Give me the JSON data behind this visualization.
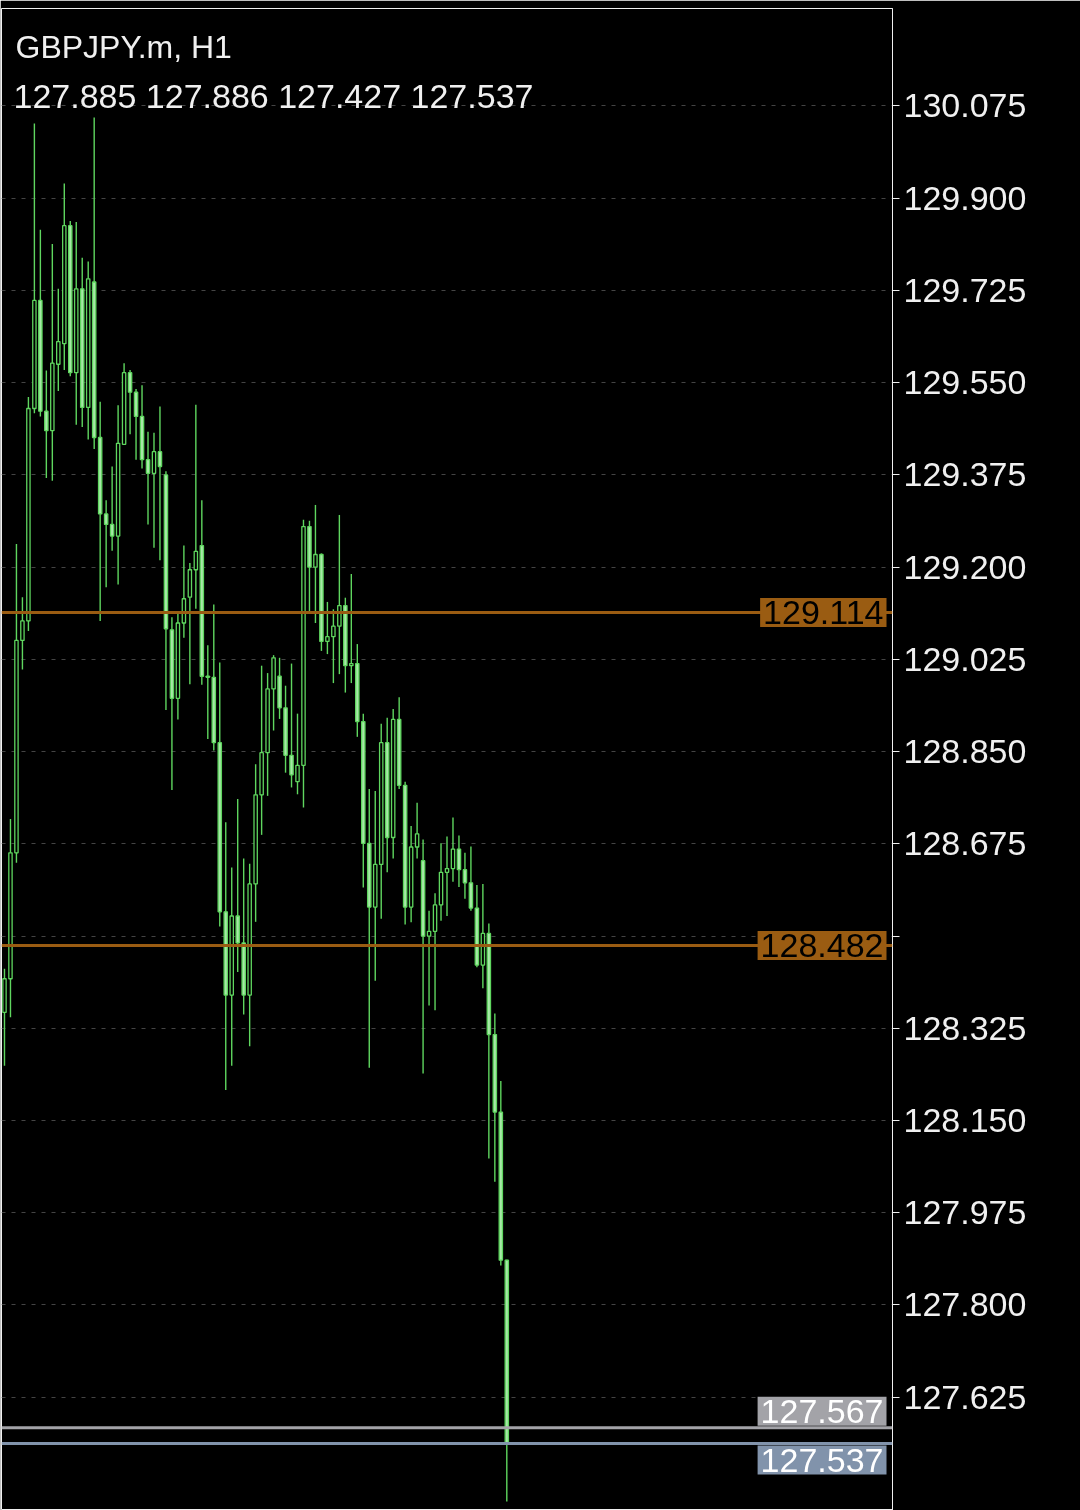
{
  "chart_data": {
    "type": "candlestick",
    "title": "GBPJPY.m, H1",
    "subtitle": "127.885 127.886 127.427 127.537",
    "categories": [
      null,
      null,
      null,
      null,
      null,
      null,
      null,
      null,
      null,
      null,
      null,
      null,
      null,
      null,
      null,
      null,
      null,
      null,
      null,
      null,
      null,
      null,
      null,
      null,
      null,
      null,
      null,
      null,
      null,
      null,
      null,
      null,
      null,
      null,
      null,
      null,
      null,
      null,
      null,
      null,
      null,
      null,
      null,
      null,
      null,
      null,
      null,
      null,
      null,
      null,
      null,
      null,
      null,
      null,
      null,
      null,
      null,
      null,
      null,
      null,
      null,
      null,
      null,
      null,
      null,
      null,
      null,
      null,
      null,
      null,
      null,
      null,
      null,
      null,
      null,
      null,
      null,
      null,
      null,
      null,
      null,
      null,
      null,
      null,
      null,
      null,
      null,
      null,
      null,
      null,
      null,
      null,
      null,
      null,
      null,
      null,
      null,
      null,
      null,
      null,
      null,
      null,
      null,
      null,
      null,
      null,
      null,
      null,
      null,
      null,
      null,
      null,
      null,
      null,
      null,
      null,
      null,
      null,
      null,
      null,
      null,
      null,
      null,
      null,
      null,
      null,
      null,
      null,
      null,
      null,
      null,
      null,
      null,
      null,
      null,
      null,
      null,
      null,
      null,
      null,
      null,
      null,
      null,
      null,
      null,
      null,
      null,
      null,
      null
    ],
    "color": "#5fd65f",
    "ohlc": [
      [
        128.355,
        128.438,
        128.254,
        128.419
      ],
      [
        128.419,
        128.722,
        128.346,
        128.658
      ],
      [
        128.658,
        129.244,
        128.639,
        129.061
      ],
      [
        129.061,
        129.143,
        129.006,
        129.098
      ],
      [
        129.098,
        129.523,
        129.079,
        129.501
      ],
      [
        129.501,
        130.042,
        129.492,
        129.706
      ],
      [
        129.706,
        129.84,
        129.486,
        129.496
      ],
      [
        129.496,
        129.573,
        129.369,
        129.459
      ],
      [
        129.459,
        129.813,
        129.364,
        129.587
      ],
      [
        129.585,
        129.728,
        129.534,
        129.628
      ],
      [
        129.624,
        129.928,
        129.574,
        129.848
      ],
      [
        129.848,
        129.857,
        129.562,
        129.569
      ],
      [
        129.569,
        129.855,
        129.47,
        129.728
      ],
      [
        129.728,
        129.787,
        129.466,
        129.503
      ],
      [
        129.503,
        129.78,
        129.442,
        129.747
      ],
      [
        129.741,
        130.053,
        129.424,
        129.446
      ],
      [
        129.446,
        129.514,
        129.098,
        129.301
      ],
      [
        129.301,
        129.327,
        129.162,
        129.281
      ],
      [
        129.281,
        129.391,
        129.231,
        129.259
      ],
      [
        129.259,
        129.507,
        129.167,
        129.435
      ],
      [
        129.433,
        129.587,
        129.433,
        129.569
      ],
      [
        129.569,
        129.574,
        129.452,
        129.532
      ],
      [
        129.532,
        129.538,
        129.404,
        129.486
      ],
      [
        129.486,
        129.545,
        129.387,
        129.404
      ],
      [
        129.404,
        129.457,
        129.281,
        129.378
      ],
      [
        129.378,
        129.455,
        129.237,
        129.419
      ],
      [
        129.419,
        129.505,
        129.213,
        129.391
      ],
      [
        129.375,
        129.382,
        128.929,
        129.083
      ],
      [
        129.081,
        129.105,
        128.777,
        128.951
      ],
      [
        128.951,
        129.112,
        128.911,
        129.094
      ],
      [
        129.094,
        129.241,
        129.066,
        129.14
      ],
      [
        129.143,
        129.208,
        128.978,
        129.195
      ],
      [
        129.195,
        129.508,
        129.121,
        129.23
      ],
      [
        129.241,
        129.327,
        128.977,
        128.993
      ],
      [
        128.993,
        129.052,
        128.874,
        128.991
      ],
      [
        128.991,
        129.129,
        128.852,
        128.867
      ],
      [
        128.867,
        129.019,
        128.518,
        128.546
      ],
      [
        128.546,
        128.716,
        128.208,
        128.388
      ],
      [
        128.388,
        128.63,
        128.254,
        128.538
      ],
      [
        128.538,
        128.76,
        128.432,
        128.487
      ],
      [
        128.487,
        128.647,
        128.351,
        128.388
      ],
      [
        128.388,
        128.637,
        128.291,
        128.599
      ],
      [
        128.599,
        128.826,
        128.527,
        128.768
      ],
      [
        128.768,
        129.013,
        128.692,
        128.848
      ],
      [
        128.848,
        128.999,
        128.766,
        128.969
      ],
      [
        128.969,
        129.033,
        128.89,
        129.028
      ],
      [
        128.993,
        129.028,
        128.912,
        128.933
      ],
      [
        128.933,
        128.975,
        128.81,
        128.843
      ],
      [
        128.843,
        129.017,
        128.782,
        128.806
      ],
      [
        128.793,
        128.922,
        128.769,
        128.824
      ],
      [
        128.824,
        129.29,
        128.744,
        129.277
      ],
      [
        129.277,
        129.288,
        129.112,
        129.2
      ],
      [
        129.2,
        129.318,
        129.094,
        129.224
      ],
      [
        129.224,
        129.226,
        129.041,
        129.059
      ],
      [
        129.059,
        129.134,
        129.035,
        129.068
      ],
      [
        129.068,
        129.12,
        128.98,
        129.088
      ],
      [
        129.088,
        129.299,
        128.997,
        129.127
      ],
      [
        129.127,
        129.142,
        128.962,
        129.013
      ],
      [
        129.013,
        129.187,
        128.98,
        129.017
      ],
      [
        129.017,
        129.054,
        128.878,
        128.907
      ],
      [
        128.907,
        128.922,
        128.592,
        128.676
      ],
      [
        128.676,
        128.779,
        128.25,
        128.555
      ],
      [
        128.555,
        128.775,
        128.415,
        128.636
      ],
      [
        128.636,
        128.903,
        128.533,
        128.867
      ],
      [
        128.867,
        128.914,
        128.621,
        128.687
      ],
      [
        128.687,
        128.931,
        128.647,
        128.911
      ],
      [
        128.911,
        128.953,
        128.779,
        128.786
      ],
      [
        128.786,
        128.793,
        128.522,
        128.555
      ],
      [
        128.555,
        128.709,
        128.526,
        128.669
      ],
      [
        128.669,
        128.753,
        128.647,
        128.694
      ],
      [
        128.643,
        128.683,
        128.239,
        128.5
      ],
      [
        128.5,
        128.548,
        128.368,
        128.509
      ],
      [
        128.509,
        128.581,
        128.359,
        128.559
      ],
      [
        128.559,
        128.676,
        128.529,
        128.621
      ],
      [
        128.621,
        128.689,
        128.538,
        128.628
      ],
      [
        128.628,
        128.725,
        128.603,
        128.665
      ],
      [
        128.665,
        128.691,
        128.593,
        128.626
      ],
      [
        128.626,
        128.658,
        128.571,
        128.601
      ],
      [
        128.601,
        128.67,
        128.548,
        128.553
      ],
      [
        128.553,
        128.597,
        128.441,
        128.445
      ],
      [
        128.445,
        128.599,
        128.401,
        128.505
      ],
      [
        128.505,
        128.524,
        128.078,
        128.313
      ],
      [
        128.313,
        128.353,
        128.034,
        128.166
      ],
      [
        128.166,
        128.225,
        127.875,
        127.885
      ],
      [
        127.885,
        127.886,
        127.427,
        127.537
      ],
      null,
      null,
      null,
      null,
      null,
      null,
      null,
      null,
      null,
      null,
      null,
      null,
      null,
      null,
      null,
      null,
      null,
      null,
      null,
      null,
      null,
      null,
      null,
      null,
      null,
      null,
      null,
      null,
      null,
      null,
      null,
      null,
      null,
      null,
      null,
      null,
      null,
      null,
      null,
      null,
      null,
      null,
      null,
      null,
      null,
      null,
      null,
      null,
      null,
      null,
      null,
      null,
      null,
      null,
      null,
      null,
      null,
      null,
      null,
      null,
      null,
      null,
      null,
      null
    ],
    "ylim": [
      127.41,
      130.26
    ],
    "yticks": [
      130.075,
      {
        "value": 129.9,
        "label": "129.900"
      },
      129.725,
      {
        "value": 129.55,
        "label": "129.550"
      },
      129.375,
      {
        "value": 129.2,
        "label": "129.200"
      },
      129.025,
      {
        "value": 128.85,
        "label": "128.850"
      },
      128.675,
      {
        "value": 128.5,
        "label": null
      },
      128.325,
      {
        "value": 128.15,
        "label": "128.150"
      },
      127.975,
      {
        "value": 127.8,
        "label": "127.800"
      },
      127.625
    ],
    "grid": "y",
    "tick_labels": "y",
    "ref_lines": [
      {
        "axis": "y",
        "value": 129.114,
        "label": "129.114",
        "color": "#9a5c12"
      },
      {
        "axis": "y",
        "value": 128.482,
        "label": "128.482",
        "color": "#9a5c12"
      },
      {
        "axis": "y",
        "value": 127.567,
        "label": "127.567",
        "color": "#a3a3a8"
      },
      {
        "axis": "y",
        "value": 127.537,
        "label": "127.537",
        "color": "#8193ab"
      }
    ]
  }
}
